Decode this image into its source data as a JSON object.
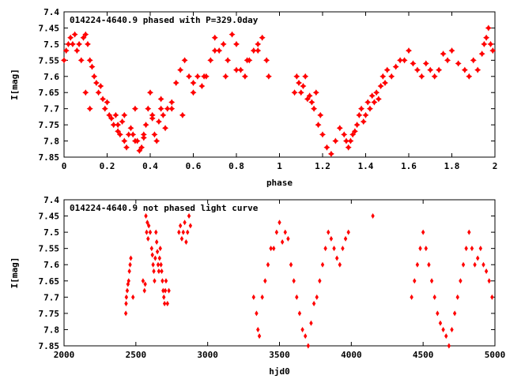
{
  "chart_data": [
    {
      "type": "scatter",
      "title": "014224-4640.9 phased with P=329.0day",
      "xlabel": "phase",
      "ylabel": "I[mag]",
      "xlim": [
        0,
        2
      ],
      "ylim": [
        7.85,
        7.4
      ],
      "y_inverted": true,
      "x_ticks": [
        "0",
        "0.2",
        "0.4",
        "0.6",
        "0.8",
        "1",
        "1.2",
        "1.4",
        "1.6",
        "1.8",
        "2"
      ],
      "y_ticks": [
        "7.4",
        "7.45",
        "7.5",
        "7.55",
        "7.6",
        "7.65",
        "7.7",
        "7.75",
        "7.8",
        "7.85"
      ],
      "marker": "star",
      "color": "#ff0000",
      "series": [
        {
          "x": [
            0.0,
            0.01,
            0.02,
            0.03,
            0.04,
            0.05,
            0.06,
            0.07,
            0.08,
            0.09,
            0.1,
            0.11,
            0.12,
            0.13,
            0.14,
            0.15,
            0.16,
            0.17,
            0.18,
            0.19,
            0.2,
            0.21,
            0.22,
            0.23,
            0.24,
            0.25,
            0.26,
            0.27,
            0.28,
            0.29,
            0.3,
            0.31,
            0.32,
            0.33,
            0.34,
            0.35,
            0.36,
            0.37,
            0.38,
            0.39,
            0.4,
            0.41,
            0.42,
            0.43,
            0.44,
            0.45,
            0.46,
            0.47,
            0.48,
            0.5,
            0.52,
            0.54,
            0.56,
            0.58,
            0.6,
            0.62,
            0.64,
            0.66,
            0.68,
            0.7,
            0.72,
            0.74,
            0.76,
            0.78,
            0.8,
            0.82,
            0.84,
            0.86,
            0.88,
            0.9,
            0.92,
            0.94,
            0.1,
            0.12,
            0.25,
            0.28,
            0.33,
            0.37,
            0.41,
            0.45,
            0.5,
            0.55,
            0.6,
            0.65,
            0.7,
            0.75,
            0.8,
            0.85,
            0.9,
            0.95
          ],
          "y": [
            7.55,
            7.52,
            7.5,
            7.48,
            7.5,
            7.47,
            7.52,
            7.5,
            7.55,
            7.48,
            7.47,
            7.5,
            7.55,
            7.57,
            7.6,
            7.62,
            7.65,
            7.63,
            7.67,
            7.7,
            7.68,
            7.72,
            7.73,
            7.75,
            7.72,
            7.77,
            7.78,
            7.74,
            7.8,
            7.82,
            7.78,
            7.76,
            7.78,
            7.8,
            7.8,
            7.83,
            7.82,
            7.79,
            7.75,
            7.7,
            7.65,
            7.72,
            7.78,
            7.8,
            7.74,
            7.7,
            7.72,
            7.76,
            7.7,
            7.68,
            7.62,
            7.58,
            7.55,
            7.6,
            7.62,
            7.6,
            7.63,
            7.6,
            7.55,
            7.48,
            7.52,
            7.5,
            7.55,
            7.47,
            7.5,
            7.58,
            7.6,
            7.55,
            7.52,
            7.5,
            7.48,
            7.55,
            7.65,
            7.7,
            7.75,
            7.72,
            7.7,
            7.78,
            7.73,
            7.67,
            7.7,
            7.72,
            7.65,
            7.6,
            7.52,
            7.6,
            7.58,
            7.55,
            7.52,
            7.6
          ]
        },
        {
          "x": [
            1.07,
            1.08,
            1.09,
            1.1,
            1.11,
            1.12,
            1.13,
            1.14,
            1.15,
            1.16,
            1.17,
            1.18,
            1.19,
            1.2,
            1.22,
            1.24,
            1.26,
            1.28,
            1.3,
            1.31,
            1.32,
            1.33,
            1.34,
            1.35,
            1.36,
            1.37,
            1.38,
            1.39,
            1.4,
            1.41,
            1.42,
            1.43,
            1.44,
            1.45,
            1.46,
            1.47,
            1.48,
            1.49,
            1.5,
            1.52,
            1.54,
            1.56,
            1.58,
            1.6,
            1.62,
            1.64,
            1.66,
            1.68,
            1.7,
            1.72,
            1.74,
            1.76,
            1.78,
            1.8,
            1.83,
            1.86,
            1.88,
            1.9,
            1.92,
            1.94,
            1.95,
            1.96,
            1.97,
            1.98,
            1.99
          ],
          "y": [
            7.65,
            7.6,
            7.62,
            7.65,
            7.63,
            7.6,
            7.67,
            7.66,
            7.68,
            7.7,
            7.65,
            7.75,
            7.72,
            7.78,
            7.82,
            7.84,
            7.8,
            7.76,
            7.78,
            7.8,
            7.82,
            7.8,
            7.78,
            7.77,
            7.75,
            7.72,
            7.7,
            7.74,
            7.72,
            7.68,
            7.7,
            7.66,
            7.68,
            7.65,
            7.67,
            7.63,
            7.6,
            7.62,
            7.58,
            7.6,
            7.57,
            7.55,
            7.55,
            7.52,
            7.56,
            7.58,
            7.6,
            7.56,
            7.58,
            7.6,
            7.58,
            7.53,
            7.55,
            7.52,
            7.56,
            7.58,
            7.6,
            7.55,
            7.58,
            7.53,
            7.5,
            7.48,
            7.45,
            7.5,
            7.52
          ]
        }
      ]
    },
    {
      "type": "scatter",
      "title": "014224-4640.9 not phased light curve",
      "xlabel": "hjd0",
      "ylabel": "I[mag]",
      "xlim": [
        2000,
        5000
      ],
      "ylim": [
        7.85,
        7.4
      ],
      "y_inverted": true,
      "x_ticks": [
        "2000",
        "2500",
        "3000",
        "3500",
        "4000",
        "4500",
        "5000"
      ],
      "y_ticks": [
        "7.4",
        "7.45",
        "7.5",
        "7.55",
        "7.6",
        "7.65",
        "7.7",
        "7.75",
        "7.8",
        "7.85"
      ],
      "marker": "diamond",
      "color": "#ff0000",
      "series": [
        {
          "x": [
            2430,
            2432,
            2434,
            2440,
            2445,
            2450,
            2455,
            2460,
            2465,
            2480,
            2550,
            2560,
            2565,
            2570,
            2575,
            2580,
            2585,
            2590,
            2600,
            2610,
            2615,
            2620,
            2625,
            2630,
            2635,
            2640,
            2645,
            2650,
            2655,
            2660,
            2665,
            2670,
            2675,
            2680,
            2685,
            2690,
            2695,
            2700,
            2705,
            2710,
            2720,
            2730,
            2800,
            2810,
            2820,
            2830,
            2840,
            2850,
            2860,
            2870,
            2880,
            3320,
            3340,
            3350,
            3360,
            3380,
            3400,
            3420,
            3440,
            3460,
            3480,
            3500,
            3520,
            3540,
            3560,
            3580,
            3600,
            3620,
            3640,
            3660,
            3680,
            3700,
            3720,
            3740,
            3760,
            3780,
            3800,
            3820,
            3840,
            3860,
            3880,
            3900,
            3920,
            3940,
            3960,
            3980,
            4150,
            4420,
            4440,
            4460,
            4480,
            4500,
            4520,
            4540,
            4560,
            4580,
            4600,
            4620,
            4640,
            4660,
            4680,
            4700,
            4720,
            4740,
            4760,
            4780,
            4800,
            4820,
            4840,
            4860,
            4880,
            4900,
            4920,
            4940,
            4960,
            4980
          ],
          "y": [
            7.75,
            7.72,
            7.7,
            7.68,
            7.66,
            7.65,
            7.62,
            7.6,
            7.58,
            7.7,
            7.65,
            7.68,
            7.66,
            7.45,
            7.5,
            7.47,
            7.52,
            7.48,
            7.5,
            7.55,
            7.57,
            7.6,
            7.62,
            7.65,
            7.58,
            7.5,
            7.53,
            7.56,
            7.6,
            7.62,
            7.58,
            7.55,
            7.6,
            7.62,
            7.65,
            7.68,
            7.7,
            7.72,
            7.68,
            7.65,
            7.72,
            7.68,
            7.5,
            7.48,
            7.52,
            7.5,
            7.47,
            7.53,
            7.5,
            7.45,
            7.48,
            7.7,
            7.75,
            7.8,
            7.82,
            7.7,
            7.65,
            7.6,
            7.55,
            7.55,
            7.5,
            7.47,
            7.53,
            7.5,
            7.52,
            7.6,
            7.65,
            7.7,
            7.75,
            7.8,
            7.82,
            7.85,
            7.78,
            7.72,
            7.7,
            7.65,
            7.6,
            7.55,
            7.5,
            7.52,
            7.55,
            7.58,
            7.6,
            7.55,
            7.52,
            7.5,
            7.45,
            7.7,
            7.65,
            7.6,
            7.55,
            7.5,
            7.55,
            7.6,
            7.65,
            7.7,
            7.75,
            7.78,
            7.8,
            7.82,
            7.85,
            7.8,
            7.75,
            7.7,
            7.65,
            7.6,
            7.55,
            7.5,
            7.55,
            7.6,
            7.58,
            7.55,
            7.6,
            7.62,
            7.65,
            7.7
          ]
        }
      ]
    }
  ]
}
